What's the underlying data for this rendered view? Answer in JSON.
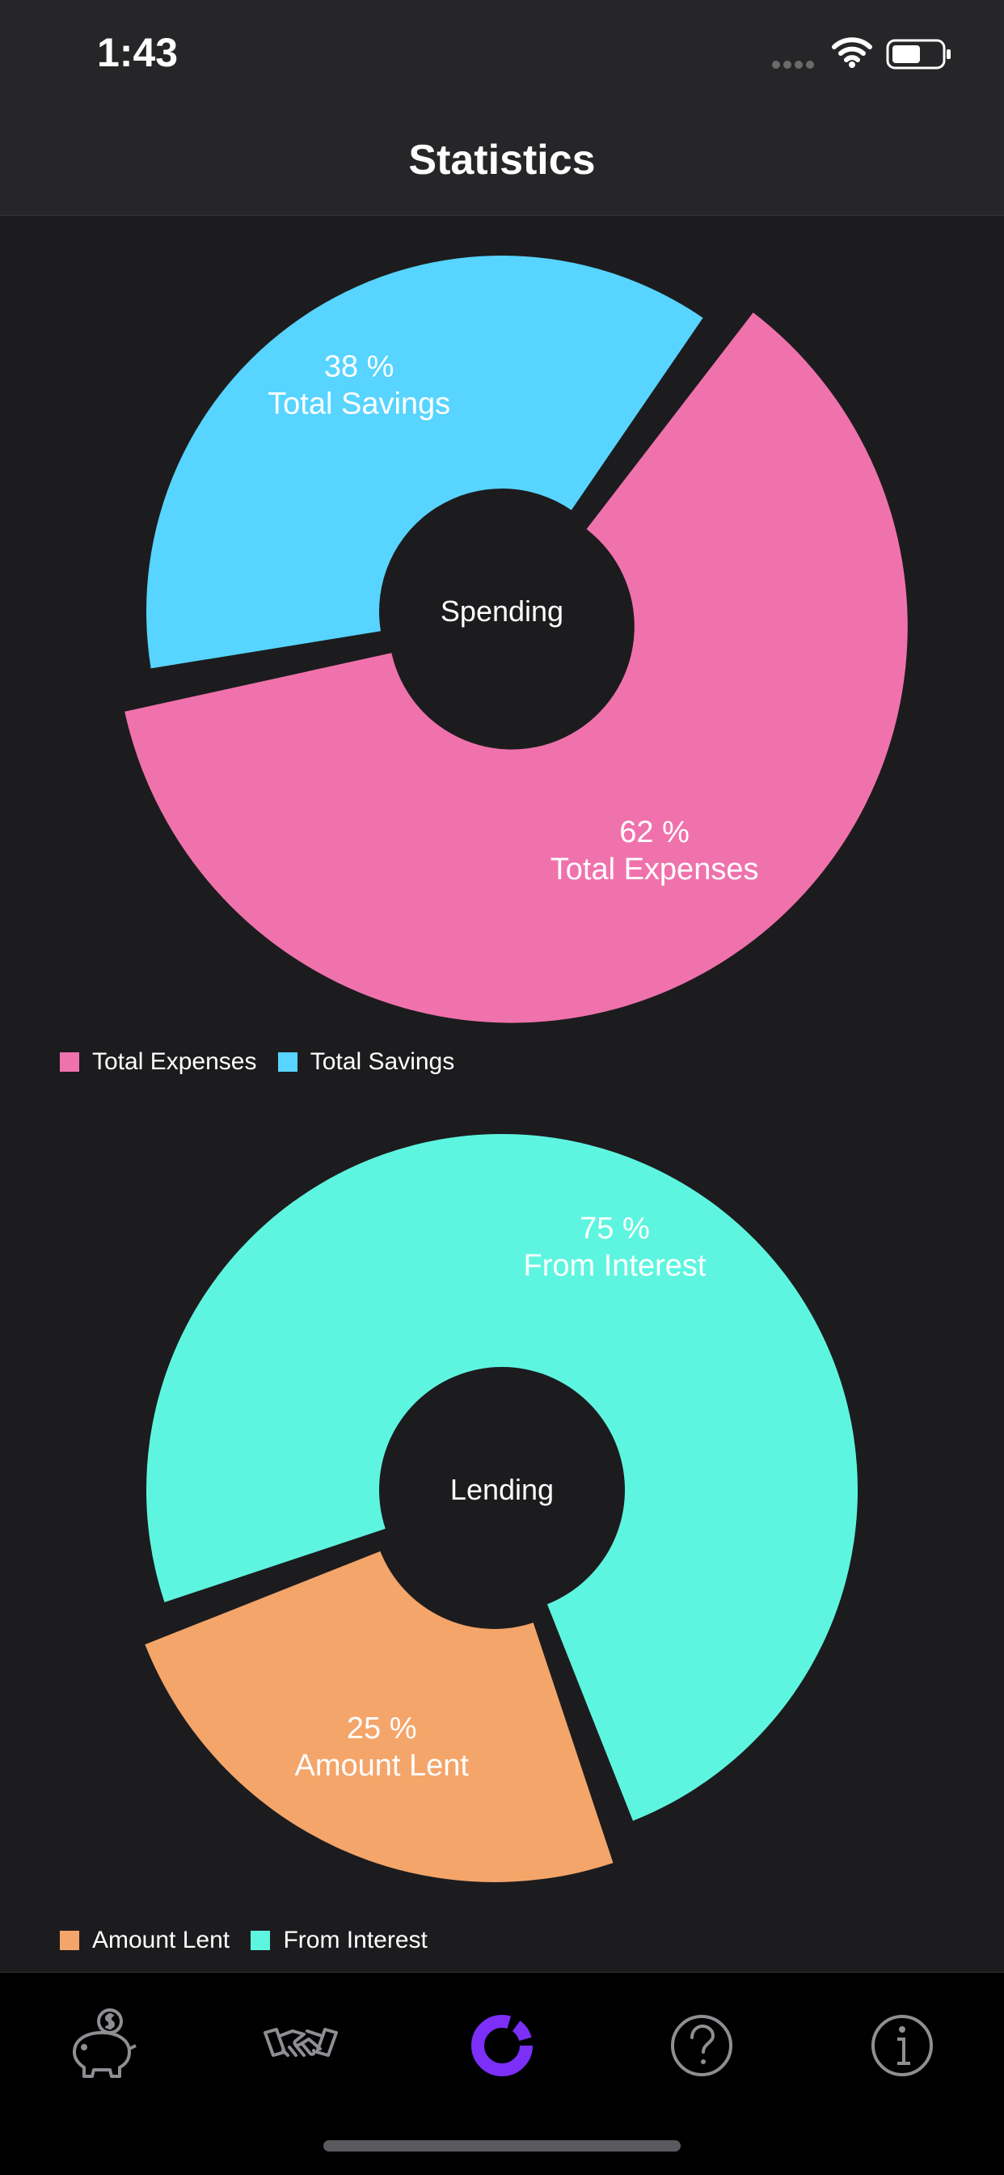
{
  "status_bar": {
    "time": "1:43"
  },
  "header": {
    "title": "Statistics"
  },
  "colors": {
    "background": "#1c1c1e",
    "expenses": "#f072ac",
    "savings": "#57d4ff",
    "interest": "#5ef5e0",
    "lent": "#f4a56a",
    "tab_active": "#7b2ff7",
    "tab_inactive": "#8e8e93"
  },
  "chart_data": [
    {
      "type": "pie",
      "center_label": "Spending",
      "slices": [
        {
          "name": "Total Expenses",
          "value": 62,
          "label": "62 %",
          "color": "#f072ac"
        },
        {
          "name": "Total Savings",
          "value": 38,
          "label": "38 %",
          "color": "#57d4ff"
        }
      ],
      "legend": [
        "Total Expenses",
        "Total Savings"
      ]
    },
    {
      "type": "pie",
      "center_label": "Lending",
      "slices": [
        {
          "name": "Amount Lent",
          "value": 25,
          "label": "25 %",
          "color": "#f4a56a"
        },
        {
          "name": "From Interest",
          "value": 75,
          "label": "75 %",
          "color": "#5ef5e0"
        }
      ],
      "legend": [
        "Amount Lent",
        "From Interest"
      ]
    }
  ],
  "tab_bar": {
    "items": [
      {
        "icon": "piggy-bank-icon",
        "active": false
      },
      {
        "icon": "handshake-icon",
        "active": false
      },
      {
        "icon": "statistics-ring-icon",
        "active": true
      },
      {
        "icon": "help-icon",
        "active": false
      },
      {
        "icon": "info-icon",
        "active": false
      }
    ]
  }
}
